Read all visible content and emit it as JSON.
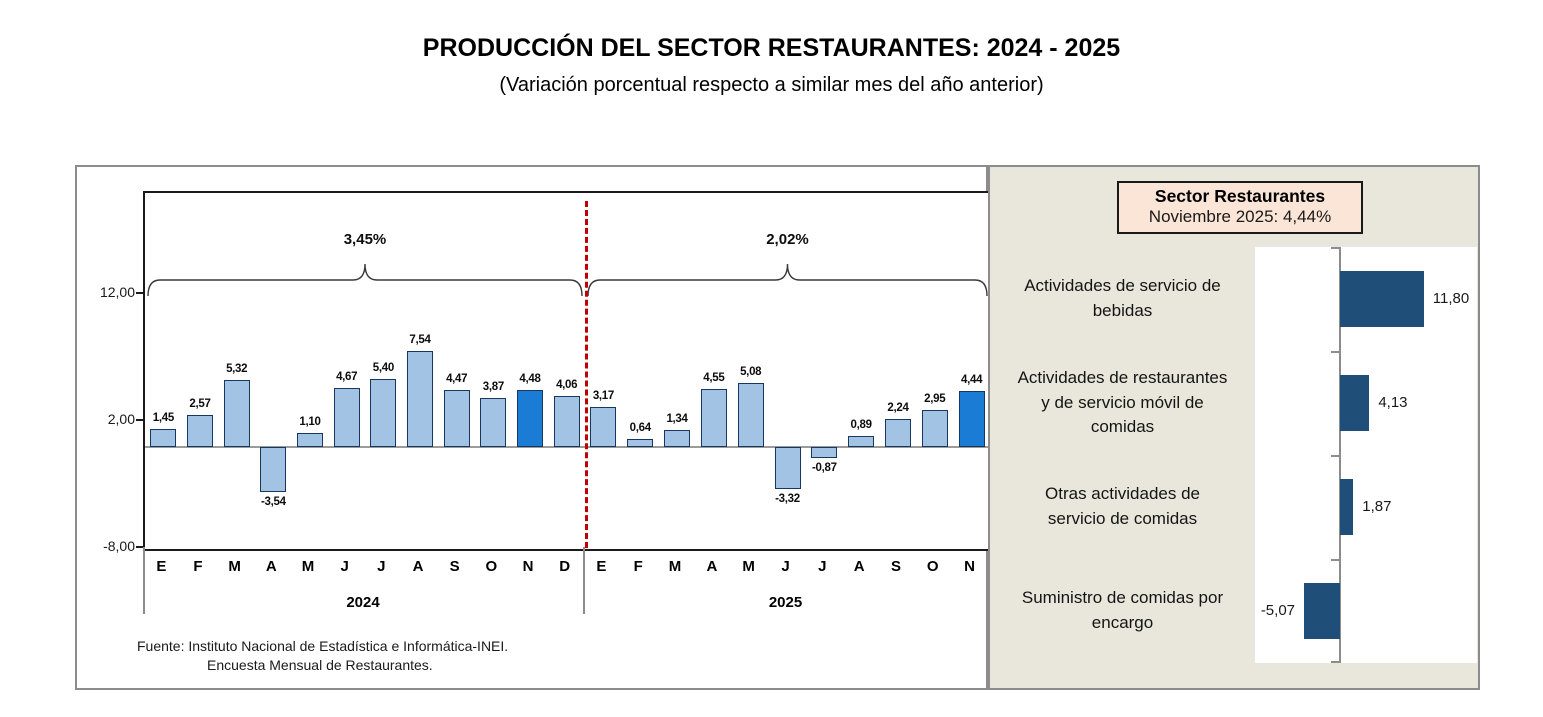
{
  "header": {
    "title": "PRODUCCIÓN DEL SECTOR RESTAURANTES: 2024 - 2025",
    "subtitle": "(Variación porcentual respecto a similar mes del año anterior)"
  },
  "footer": {
    "line1": "Fuente: Instituto Nacional de Estadística e Informática-INEI.",
    "line2": "Encuesta Mensual de  Restaurantes."
  },
  "colors": {
    "bar_light": "#A3C3E5",
    "bar_highlight": "#1B7CD6",
    "bar_border": "#17375E",
    "bar_navy": "#1F4E79",
    "divider_red": "#C00000",
    "panel_beige": "#E9E7DB",
    "box_peach": "#FBE5D6"
  },
  "chart_data": [
    {
      "id": "monthly-variation",
      "type": "bar",
      "title": "PRODUCCIÓN DEL SECTOR RESTAURANTES: 2024 - 2025",
      "xlabel": "",
      "ylabel": "",
      "ylim": [
        -8,
        20
      ],
      "grid": false,
      "yticks": [
        {
          "value": 12,
          "label": "12,00"
        },
        {
          "value": 2,
          "label": "2,00"
        },
        {
          "value": -8,
          "label": "-8,00"
        }
      ],
      "groups": [
        {
          "year": "2024",
          "annotation": "3,45%",
          "categories": [
            "E",
            "F",
            "M",
            "A",
            "M",
            "J",
            "J",
            "A",
            "S",
            "O",
            "N",
            "D"
          ],
          "values": [
            1.45,
            2.57,
            5.32,
            -3.54,
            1.1,
            4.67,
            5.4,
            7.54,
            4.47,
            3.87,
            4.48,
            4.06
          ],
          "labels": [
            "1,45",
            "2,57",
            "5,32",
            "-3,54",
            "1,10",
            "4,67",
            "5,40",
            "7,54",
            "4,47",
            "3,87",
            "4,48",
            "4,06"
          ],
          "highlight_index": 10
        },
        {
          "year": "2025",
          "annotation": "2,02%",
          "categories": [
            "E",
            "F",
            "M",
            "A",
            "M",
            "J",
            "J",
            "A",
            "S",
            "O",
            "N"
          ],
          "values": [
            3.17,
            0.64,
            1.34,
            4.55,
            5.08,
            -3.32,
            -0.87,
            0.89,
            2.24,
            2.95,
            4.44
          ],
          "labels": [
            "3,17",
            "0,64",
            "1,34",
            "4,55",
            "5,08",
            "-3,32",
            "-0,87",
            "0,89",
            "2,24",
            "2,95",
            "4,44"
          ],
          "highlight_index": 10
        }
      ]
    },
    {
      "id": "sector-november",
      "type": "bar",
      "orientation": "horizontal",
      "title": "Sector Restaurantes",
      "subtitle": "Noviembre 2025: 4,44%",
      "categories": [
        "Actividades de servicio de bebidas",
        "Actividades de restaurantes y de servicio móvil de comidas",
        "Otras actividades de servicio de comidas",
        "Suministro de comidas por encargo"
      ],
      "values": [
        11.8,
        4.13,
        1.87,
        -5.07
      ],
      "labels": [
        "11,80",
        "4,13",
        "1,87",
        "-5,07"
      ]
    }
  ]
}
